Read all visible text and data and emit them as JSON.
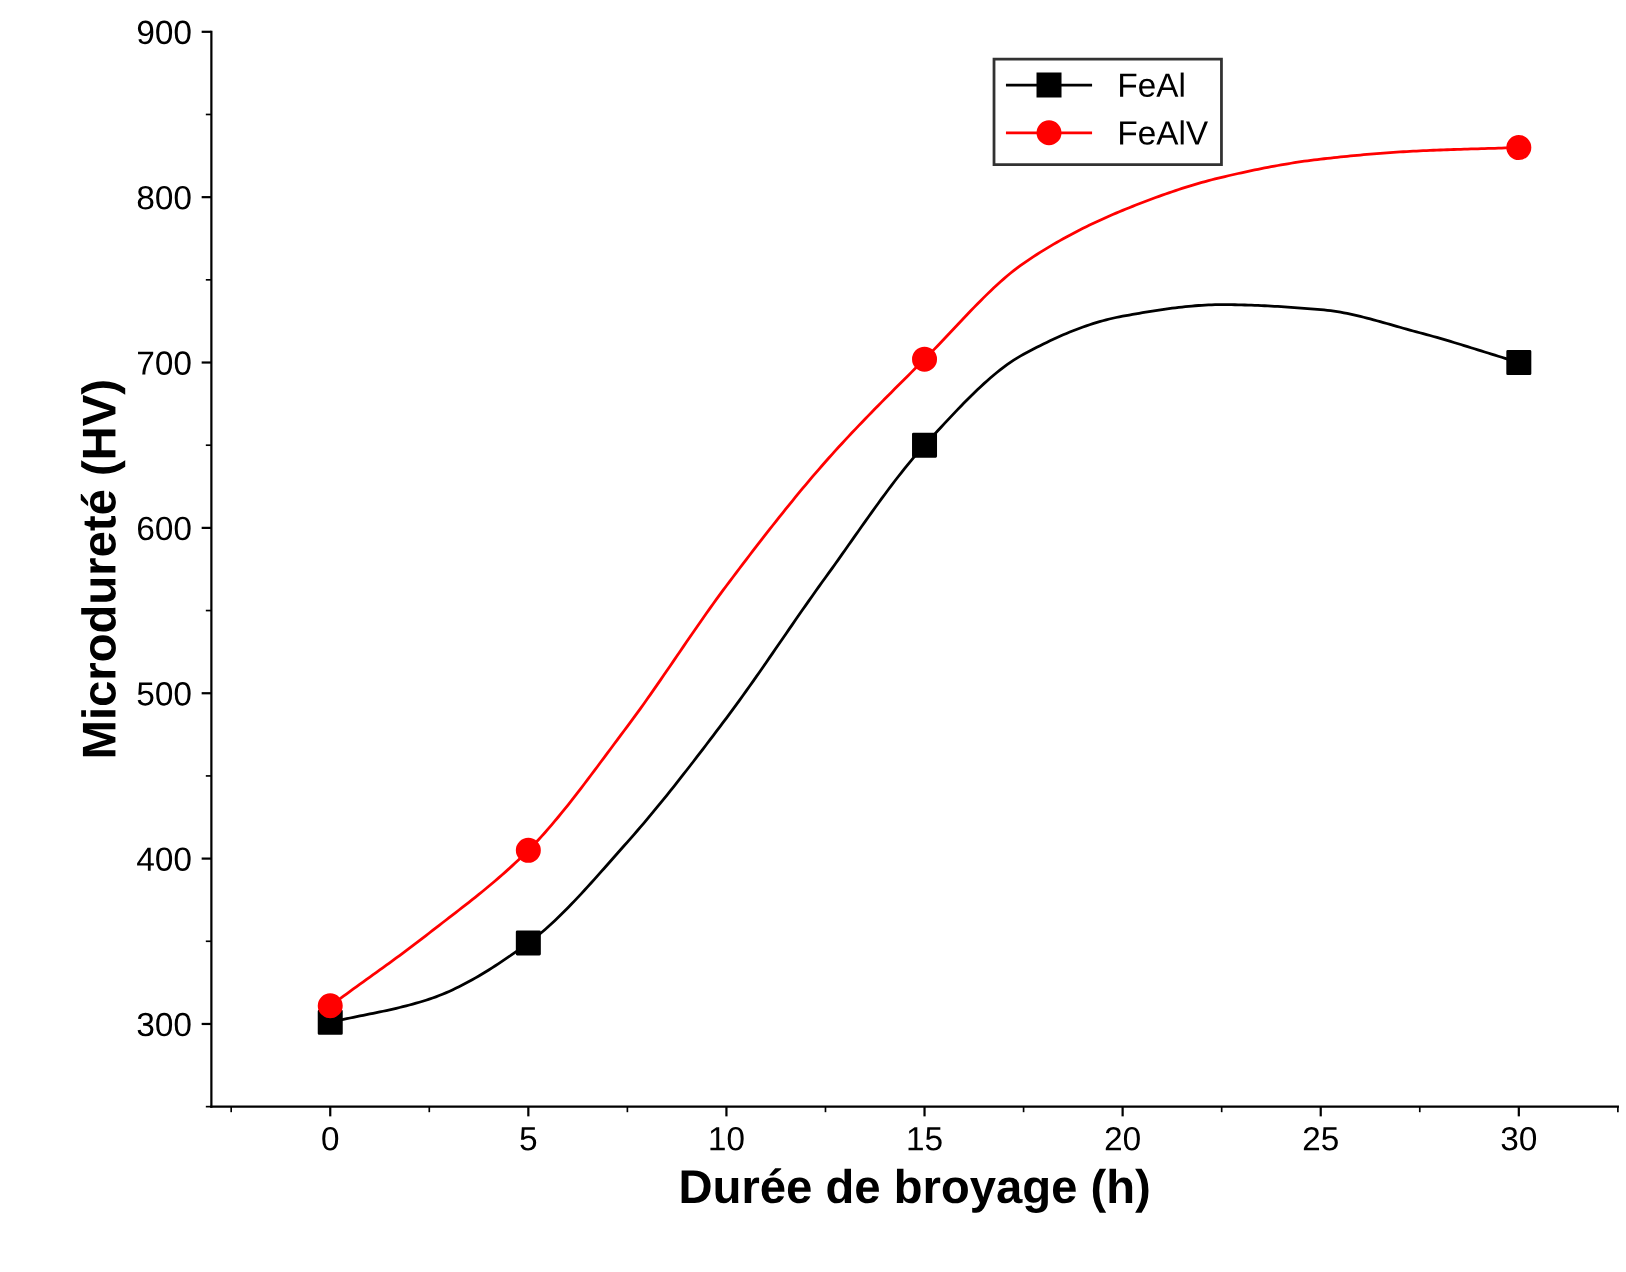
{
  "chart_data": {
    "type": "line",
    "xlabel": "Durée de broyage (h)",
    "ylabel": "Microdureté (HV)",
    "x": [
      0,
      5,
      15,
      30
    ],
    "series": [
      {
        "name": "FeAl",
        "type": "scatter",
        "color": "#000000",
        "marker": "square",
        "values": [
          301,
          349,
          650,
          700
        ]
      },
      {
        "name": "FeAlV",
        "type": "scatter",
        "color": "#ff0000",
        "marker": "circle",
        "values": [
          311,
          405,
          702,
          830
        ]
      },
      {
        "color": "#000000",
        "marker": "none",
        "x": [
          0,
          2.5,
          5,
          7.5,
          10,
          12.5,
          15,
          17.5,
          20,
          22.5,
          25,
          27.5,
          30
        ],
        "values": [
          301,
          315,
          349,
          410,
          485,
          570,
          650,
          705,
          728,
          735,
          732,
          718,
          700
        ]
      },
      {
        "color": "#ff0000",
        "marker": "none",
        "x": [
          0,
          2.5,
          5,
          7.5,
          10,
          12.5,
          15,
          17.5,
          20,
          22.5,
          25,
          27.5,
          30
        ],
        "values": [
          311,
          355,
          405,
          480,
          565,
          640,
          702,
          760,
          792,
          812,
          823,
          828,
          830
        ]
      }
    ],
    "xlim": [
      -3,
      32.5
    ],
    "xticks": [
      0,
      5,
      10,
      15,
      20,
      25,
      30
    ],
    "ylim": [
      250,
      900
    ],
    "yticks": [
      300,
      400,
      500,
      600,
      700,
      800,
      900
    ],
    "grid": false,
    "legend": "top right",
    "line_style": "solid"
  }
}
